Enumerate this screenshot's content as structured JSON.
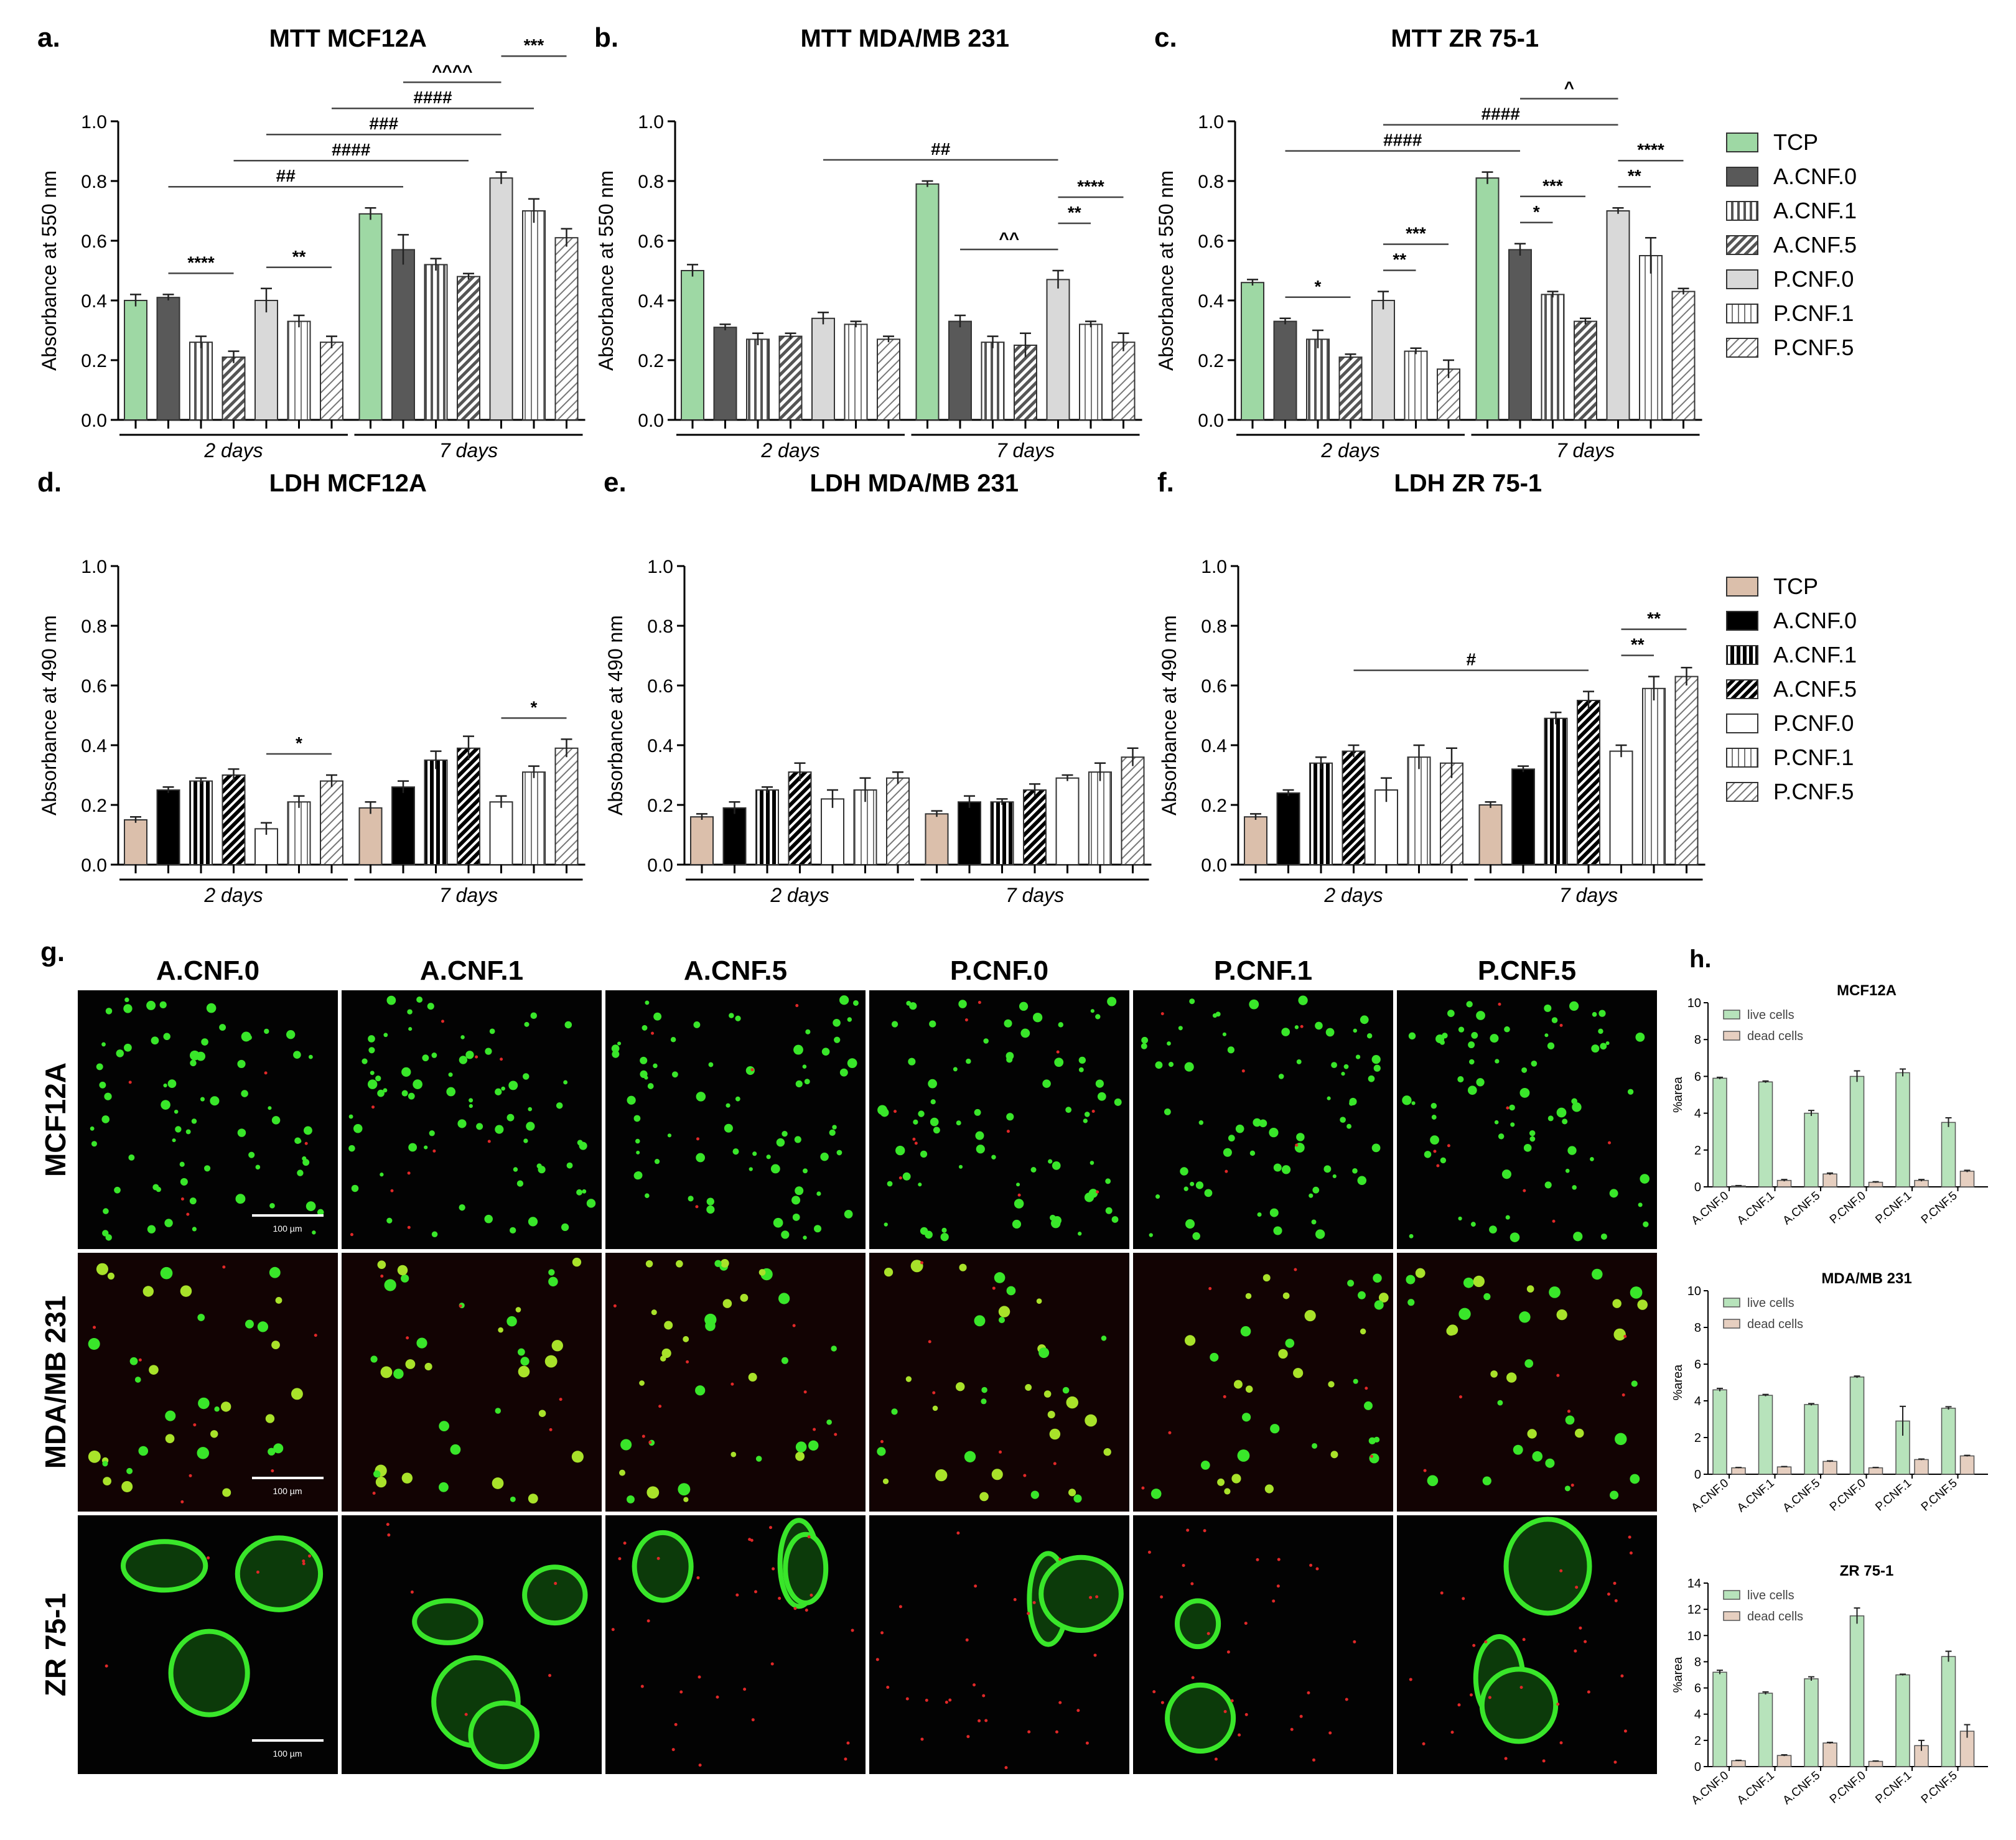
{
  "colors": {
    "mtt": [
      "#9ed8a4",
      "#595959",
      "#ffffff",
      "#ffffff",
      "#d9d9d9",
      "#ffffff",
      "#ffffff"
    ],
    "ldh": [
      "#dbbfab",
      "#000000",
      "#ffffff",
      "#ffffff",
      "#ffffff",
      "#ffffff",
      "#ffffff"
    ],
    "live": "#b7e3bb",
    "dead": "#e6cfc0",
    "micro_green": "#39e62a",
    "micro_red": "#e02828"
  },
  "legends": {
    "mtt": [
      "TCP",
      "A.CNF.0",
      "A.CNF.1",
      "A.CNF.5",
      "P.CNF.0",
      "P.CNF.1",
      "P.CNF.5"
    ],
    "ldh": [
      "TCP",
      "A.CNF.0",
      "A.CNF.1",
      "A.CNF.5",
      "P.CNF.0",
      "P.CNF.1",
      "P.CNF.5"
    ]
  },
  "chart_data": [
    {
      "id": "a",
      "letter": "a.",
      "type": "bar",
      "title": "MTT MCF12A",
      "ylabel": "Absorbance at 550 nm",
      "ylim": [
        0,
        1.0
      ],
      "yticks": [
        "0.0",
        "0.2",
        "0.4",
        "0.6",
        "0.8",
        "1.0"
      ],
      "groups": [
        "2 days",
        "7 days"
      ],
      "series_names": [
        "TCP",
        "A.CNF.0",
        "A.CNF.1",
        "A.CNF.5",
        "P.CNF.0",
        "P.CNF.1",
        "P.CNF.5"
      ],
      "values": [
        [
          0.4,
          0.41,
          0.26,
          0.21,
          0.4,
          0.33,
          0.26
        ],
        [
          0.69,
          0.57,
          0.52,
          0.48,
          0.81,
          0.7,
          0.61
        ]
      ],
      "errors": [
        [
          0.02,
          0.01,
          0.02,
          0.02,
          0.04,
          0.02,
          0.02
        ],
        [
          0.02,
          0.05,
          0.02,
          0.01,
          0.02,
          0.04,
          0.03
        ]
      ],
      "annotations": [
        {
          "label": "****",
          "from": [
            0,
            1
          ],
          "to": [
            0,
            3
          ]
        },
        {
          "label": "**",
          "from": [
            0,
            4
          ],
          "to": [
            0,
            6
          ]
        },
        {
          "label": "##",
          "from": [
            0,
            1
          ],
          "to": [
            1,
            1
          ]
        },
        {
          "label": "####",
          "from": [
            0,
            3
          ],
          "to": [
            1,
            3
          ]
        },
        {
          "label": "###",
          "from": [
            0,
            4
          ],
          "to": [
            1,
            4
          ]
        },
        {
          "label": "####",
          "from": [
            0,
            6
          ],
          "to": [
            1,
            5
          ]
        },
        {
          "label": "^^^^",
          "from": [
            1,
            1
          ],
          "to": [
            1,
            4
          ]
        },
        {
          "label": "***",
          "from": [
            1,
            4
          ],
          "to": [
            1,
            6
          ]
        }
      ]
    },
    {
      "id": "b",
      "letter": "b.",
      "type": "bar",
      "title": "MTT MDA/MB 231",
      "ylabel": "Absorbance at 550 nm",
      "ylim": [
        0,
        1.0
      ],
      "yticks": [
        "0.0",
        "0.2",
        "0.4",
        "0.6",
        "0.8",
        "1.0"
      ],
      "groups": [
        "2 days",
        "7 days"
      ],
      "series_names": [
        "TCP",
        "A.CNF.0",
        "A.CNF.1",
        "A.CNF.5",
        "P.CNF.0",
        "P.CNF.1",
        "P.CNF.5"
      ],
      "values": [
        [
          0.5,
          0.31,
          0.27,
          0.28,
          0.34,
          0.32,
          0.27
        ],
        [
          0.79,
          0.33,
          0.26,
          0.25,
          0.47,
          0.32,
          0.26
        ]
      ],
      "errors": [
        [
          0.02,
          0.01,
          0.02,
          0.01,
          0.02,
          0.01,
          0.01
        ],
        [
          0.01,
          0.02,
          0.02,
          0.04,
          0.03,
          0.01,
          0.03
        ]
      ],
      "annotations": [
        {
          "label": "##",
          "from": [
            0,
            4
          ],
          "to": [
            1,
            4
          ]
        },
        {
          "label": "^^",
          "from": [
            1,
            1
          ],
          "to": [
            1,
            4
          ]
        },
        {
          "label": "**",
          "from": [
            1,
            4
          ],
          "to": [
            1,
            5
          ]
        },
        {
          "label": "****",
          "from": [
            1,
            4
          ],
          "to": [
            1,
            6
          ]
        }
      ]
    },
    {
      "id": "c",
      "letter": "c.",
      "type": "bar",
      "title": "MTT ZR 75-1",
      "ylabel": "Absorbance at 550 nm",
      "ylim": [
        0,
        1.0
      ],
      "yticks": [
        "0.0",
        "0.2",
        "0.4",
        "0.6",
        "0.8",
        "1.0"
      ],
      "groups": [
        "2 days",
        "7 days"
      ],
      "series_names": [
        "TCP",
        "A.CNF.0",
        "A.CNF.1",
        "A.CNF.5",
        "P.CNF.0",
        "P.CNF.1",
        "P.CNF.5"
      ],
      "values": [
        [
          0.46,
          0.33,
          0.27,
          0.21,
          0.4,
          0.23,
          0.17
        ],
        [
          0.81,
          0.57,
          0.42,
          0.33,
          0.7,
          0.55,
          0.43
        ]
      ],
      "errors": [
        [
          0.01,
          0.01,
          0.03,
          0.01,
          0.03,
          0.01,
          0.03
        ],
        [
          0.02,
          0.02,
          0.01,
          0.01,
          0.01,
          0.06,
          0.01
        ]
      ],
      "annotations": [
        {
          "label": "*",
          "from": [
            0,
            1
          ],
          "to": [
            0,
            3
          ]
        },
        {
          "label": "**",
          "from": [
            0,
            4
          ],
          "to": [
            0,
            5
          ]
        },
        {
          "label": "***",
          "from": [
            0,
            4
          ],
          "to": [
            0,
            6
          ]
        },
        {
          "label": "####",
          "from": [
            0,
            1
          ],
          "to": [
            1,
            1
          ]
        },
        {
          "label": "####",
          "from": [
            0,
            4
          ],
          "to": [
            1,
            4
          ]
        },
        {
          "label": "*",
          "from": [
            1,
            1
          ],
          "to": [
            1,
            2
          ]
        },
        {
          "label": "***",
          "from": [
            1,
            1
          ],
          "to": [
            1,
            3
          ]
        },
        {
          "label": "^",
          "from": [
            1,
            1
          ],
          "to": [
            1,
            4
          ]
        },
        {
          "label": "**",
          "from": [
            1,
            4
          ],
          "to": [
            1,
            5
          ]
        },
        {
          "label": "****",
          "from": [
            1,
            4
          ],
          "to": [
            1,
            6
          ]
        }
      ]
    },
    {
      "id": "d",
      "letter": "d.",
      "type": "bar",
      "title": "LDH MCF12A",
      "ylabel": "Absorbance at 490 nm",
      "ylim": [
        0,
        1.0
      ],
      "yticks": [
        "0.0",
        "0.2",
        "0.4",
        "0.6",
        "0.8",
        "1.0"
      ],
      "groups": [
        "2 days",
        "7 days"
      ],
      "series_names": [
        "TCP",
        "A.CNF.0",
        "A.CNF.1",
        "A.CNF.5",
        "P.CNF.0",
        "P.CNF.1",
        "P.CNF.5"
      ],
      "values": [
        [
          0.15,
          0.25,
          0.28,
          0.3,
          0.12,
          0.21,
          0.28
        ],
        [
          0.19,
          0.26,
          0.35,
          0.39,
          0.21,
          0.31,
          0.39
        ]
      ],
      "errors": [
        [
          0.01,
          0.01,
          0.01,
          0.02,
          0.02,
          0.02,
          0.02
        ],
        [
          0.02,
          0.02,
          0.03,
          0.04,
          0.02,
          0.02,
          0.03
        ]
      ],
      "annotations": [
        {
          "label": "*",
          "from": [
            0,
            4
          ],
          "to": [
            0,
            6
          ]
        },
        {
          "label": "*",
          "from": [
            1,
            4
          ],
          "to": [
            1,
            6
          ]
        }
      ]
    },
    {
      "id": "e",
      "letter": "e.",
      "type": "bar",
      "title": "LDH MDA/MB 231",
      "ylabel": "Absorbance at 490 nm",
      "ylim": [
        0,
        1.0
      ],
      "yticks": [
        "0.0",
        "0.2",
        "0.4",
        "0.6",
        "0.8",
        "1.0"
      ],
      "groups": [
        "2 days",
        "7 days"
      ],
      "series_names": [
        "TCP",
        "A.CNF.0",
        "A.CNF.1",
        "A.CNF.5",
        "P.CNF.0",
        "P.CNF.1",
        "P.CNF.5"
      ],
      "values": [
        [
          0.16,
          0.19,
          0.25,
          0.31,
          0.22,
          0.25,
          0.29
        ],
        [
          0.17,
          0.21,
          0.21,
          0.25,
          0.29,
          0.31,
          0.36
        ]
      ],
      "errors": [
        [
          0.01,
          0.02,
          0.01,
          0.03,
          0.03,
          0.04,
          0.02
        ],
        [
          0.01,
          0.02,
          0.01,
          0.02,
          0.01,
          0.03,
          0.03
        ]
      ],
      "annotations": []
    },
    {
      "id": "f",
      "letter": "f.",
      "type": "bar",
      "title": "LDH ZR 75-1",
      "ylabel": "Absorbance at 490 nm",
      "ylim": [
        0,
        1.0
      ],
      "yticks": [
        "0.0",
        "0.2",
        "0.4",
        "0.6",
        "0.8",
        "1.0"
      ],
      "groups": [
        "2 days",
        "7 days"
      ],
      "series_names": [
        "TCP",
        "A.CNF.0",
        "A.CNF.1",
        "A.CNF.5",
        "P.CNF.0",
        "P.CNF.1",
        "P.CNF.5"
      ],
      "values": [
        [
          0.16,
          0.24,
          0.34,
          0.38,
          0.25,
          0.36,
          0.34
        ],
        [
          0.2,
          0.32,
          0.49,
          0.55,
          0.38,
          0.59,
          0.63
        ]
      ],
      "errors": [
        [
          0.01,
          0.01,
          0.02,
          0.02,
          0.04,
          0.04,
          0.05
        ],
        [
          0.01,
          0.01,
          0.02,
          0.03,
          0.02,
          0.04,
          0.03
        ]
      ],
      "annotations": [
        {
          "label": "#",
          "from": [
            0,
            3
          ],
          "to": [
            1,
            3
          ]
        },
        {
          "label": "**",
          "from": [
            1,
            4
          ],
          "to": [
            1,
            5
          ]
        },
        {
          "label": "**",
          "from": [
            1,
            4
          ],
          "to": [
            1,
            6
          ]
        }
      ]
    },
    {
      "id": "h1",
      "type": "bar",
      "title": "MCF12A",
      "ylabel": "%area",
      "ylim": [
        0,
        10
      ],
      "yticks": [
        "0",
        "2",
        "4",
        "6",
        "8",
        "10"
      ],
      "categories": [
        "A.CNF.0",
        "A.CNF.1",
        "A.CNF.5",
        "P.CNF.0",
        "P.CNF.1",
        "P.CNF.5"
      ],
      "series": [
        {
          "name": "live cells",
          "values": [
            5.9,
            5.7,
            4.0,
            6.0,
            6.2,
            3.5
          ],
          "errors": [
            0.05,
            0.05,
            0.15,
            0.3,
            0.2,
            0.25
          ]
        },
        {
          "name": "dead cells",
          "values": [
            0.05,
            0.35,
            0.7,
            0.25,
            0.35,
            0.85
          ],
          "errors": [
            0.02,
            0.05,
            0.05,
            0.03,
            0.05,
            0.05
          ]
        }
      ]
    },
    {
      "id": "h2",
      "type": "bar",
      "title": "MDA/MB 231",
      "ylabel": "%area",
      "ylim": [
        0,
        10
      ],
      "yticks": [
        "0",
        "2",
        "4",
        "6",
        "8",
        "10"
      ],
      "categories": [
        "A.CNF.0",
        "A.CNF.1",
        "A.CNF.5",
        "P.CNF.0",
        "P.CNF.1",
        "P.CNF.5"
      ],
      "series": [
        {
          "name": "live cells",
          "values": [
            4.6,
            4.3,
            3.8,
            5.3,
            2.9,
            3.6
          ],
          "errors": [
            0.08,
            0.05,
            0.05,
            0.05,
            0.8,
            0.08
          ]
        },
        {
          "name": "dead cells",
          "values": [
            0.35,
            0.4,
            0.7,
            0.35,
            0.8,
            1.0
          ],
          "errors": [
            0.02,
            0.02,
            0.03,
            0.02,
            0.03,
            0.03
          ]
        }
      ]
    },
    {
      "id": "h3",
      "type": "bar",
      "title": "ZR 75-1",
      "ylabel": "%area",
      "ylim": [
        0,
        14
      ],
      "yticks": [
        "0",
        "2",
        "4",
        "6",
        "8",
        "10",
        "12",
        "14"
      ],
      "categories": [
        "A.CNF.0",
        "A.CNF.1",
        "A.CNF.5",
        "P.CNF.0",
        "P.CNF.1",
        "P.CNF.5"
      ],
      "series": [
        {
          "name": "live cells",
          "values": [
            7.2,
            5.6,
            6.7,
            11.5,
            7.0,
            8.4
          ],
          "errors": [
            0.15,
            0.1,
            0.15,
            0.6,
            0.05,
            0.4
          ]
        },
        {
          "name": "dead cells",
          "values": [
            0.45,
            0.85,
            1.8,
            0.4,
            1.6,
            2.7
          ],
          "errors": [
            0.03,
            0.05,
            0.05,
            0.03,
            0.4,
            0.5
          ]
        }
      ]
    }
  ],
  "microscopy": {
    "letter": "g.",
    "columns": [
      "A.CNF.0",
      "A.CNF.1",
      "A.CNF.5",
      "P.CNF.0",
      "P.CNF.1",
      "P.CNF.5"
    ],
    "rows": [
      "MCF12A",
      "MDA/MB 231",
      "ZR 75-1"
    ],
    "scale_label": "100 µm"
  },
  "h_letter": "h."
}
